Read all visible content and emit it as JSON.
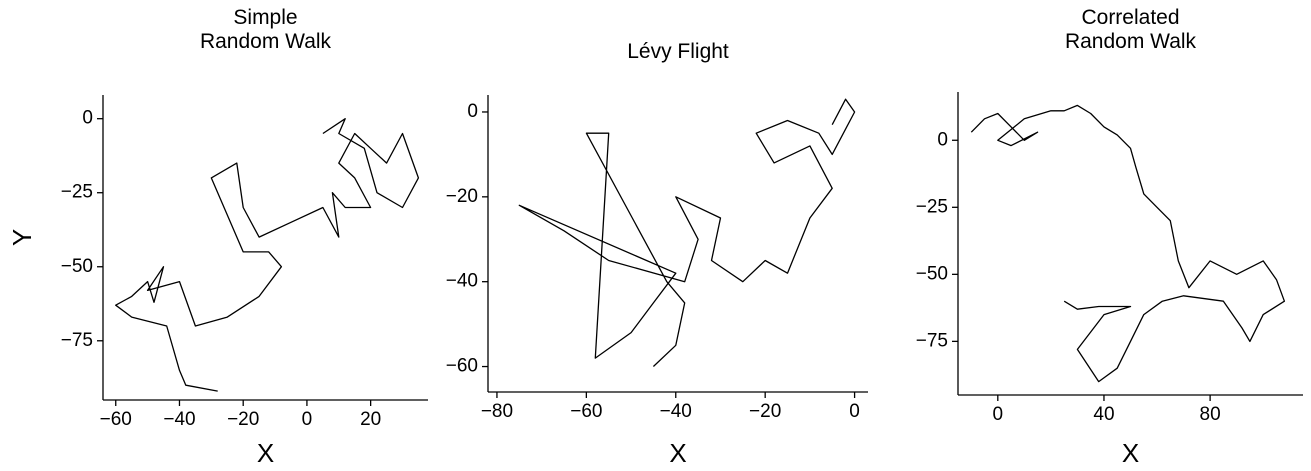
{
  "chart_data": [
    {
      "type": "line",
      "title": "Simple\nRandom Walk",
      "x_label": "X",
      "y_label": "Y",
      "color": "#000000",
      "x": [
        -28,
        -38,
        -40,
        -44,
        -55,
        -60,
        -55,
        -50,
        -48,
        -45,
        -50,
        -40,
        -35,
        -25,
        -15,
        -8,
        -12,
        -20,
        -30,
        -22,
        -20,
        -15,
        -5,
        5,
        10,
        8,
        12,
        20,
        15,
        10,
        15,
        20,
        25,
        30,
        35,
        30,
        22,
        18,
        10,
        12,
        5
      ],
      "values": [
        -92,
        -90,
        -85,
        -70,
        -67,
        -63,
        -60,
        -55,
        -62,
        -50,
        -58,
        -55,
        -70,
        -67,
        -60,
        -50,
        -45,
        -45,
        -20,
        -15,
        -30,
        -40,
        -35,
        -30,
        -40,
        -25,
        -30,
        -30,
        -20,
        -15,
        -5,
        -10,
        -15,
        -5,
        -20,
        -30,
        -25,
        -10,
        -5,
        0,
        -5
      ],
      "xlim": [
        -64,
        38
      ],
      "xticks": [
        {
          "value": -60,
          "label": "−60"
        },
        {
          "value": -40,
          "label": "−40"
        },
        {
          "value": -20,
          "label": "−20"
        },
        0,
        20
      ],
      "ylim": [
        -95,
        8
      ],
      "yticks": [
        0,
        {
          "value": -25,
          "label": "−25"
        },
        {
          "value": -50,
          "label": "−50"
        },
        {
          "value": -75,
          "label": "−75"
        }
      ]
    },
    {
      "type": "line",
      "title": "Lévy Flight",
      "x_label": "X",
      "color": "#000000",
      "x": [
        -45,
        -40,
        -38,
        -42,
        -60,
        -55,
        -58,
        -50,
        -45,
        -40,
        -75,
        -65,
        -55,
        -38,
        -35,
        -40,
        -30,
        -32,
        -25,
        -20,
        -15,
        -10,
        -5,
        -10,
        -18,
        -22,
        -15,
        -8,
        -5,
        0,
        -2,
        -5
      ],
      "values": [
        -60,
        -55,
        -45,
        -40,
        -5,
        -5,
        -58,
        -52,
        -45,
        -38,
        -22,
        -28,
        -35,
        -40,
        -30,
        -20,
        -25,
        -35,
        -40,
        -35,
        -38,
        -25,
        -18,
        -8,
        -12,
        -5,
        -2,
        -5,
        -10,
        0,
        3,
        -3
      ],
      "xlim": [
        -82,
        3
      ],
      "xticks": [
        {
          "value": -80,
          "label": "−80"
        },
        {
          "value": -60,
          "label": "−60"
        },
        {
          "value": -40,
          "label": "−40"
        },
        {
          "value": -20,
          "label": "−20"
        },
        0
      ],
      "ylim": [
        -66,
        4
      ],
      "yticks": [
        0,
        {
          "value": -20,
          "label": "−20"
        },
        {
          "value": -40,
          "label": "−40"
        },
        {
          "value": -60,
          "label": "−60"
        }
      ]
    },
    {
      "type": "line",
      "title": "Correlated\nRandom Walk",
      "x_label": "X",
      "color": "#000000",
      "x": [
        -10,
        -5,
        0,
        5,
        10,
        15,
        5,
        0,
        10,
        20,
        25,
        30,
        35,
        40,
        45,
        50,
        52,
        55,
        60,
        65,
        68,
        72,
        80,
        90,
        100,
        105,
        108,
        100,
        95,
        92,
        85,
        70,
        62,
        55,
        50,
        45,
        38,
        30,
        40,
        50,
        38,
        30,
        25
      ],
      "values": [
        3,
        8,
        10,
        5,
        0,
        3,
        -2,
        0,
        8,
        11,
        11,
        13,
        10,
        5,
        2,
        -3,
        -10,
        -20,
        -25,
        -30,
        -45,
        -55,
        -45,
        -50,
        -45,
        -52,
        -60,
        -65,
        -75,
        -70,
        -60,
        -58,
        -60,
        -65,
        -75,
        -85,
        -90,
        -78,
        -65,
        -62,
        -62,
        -63,
        -60
      ],
      "xlim": [
        -15,
        115
      ],
      "xticks": [
        0,
        40,
        80
      ],
      "ylim": [
        -95,
        18
      ],
      "yticks": [
        0,
        {
          "value": -25,
          "label": "−25"
        },
        {
          "value": -50,
          "label": "−50"
        },
        {
          "value": -75,
          "label": "−75"
        }
      ]
    }
  ]
}
